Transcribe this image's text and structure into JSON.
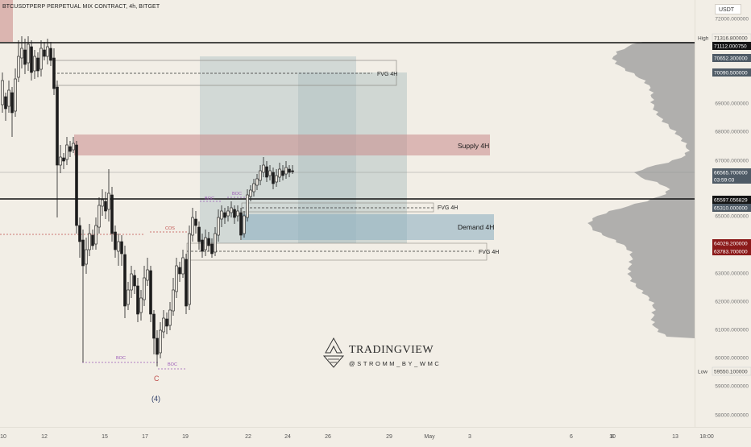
{
  "header": {
    "title": "BTCUSDTPERP PERPETUAL MIX CONTRACT, 4h, BITGET",
    "currency": "USDT"
  },
  "price_axis": {
    "ticks": [
      "72000.000000",
      "69000.000000",
      "68000.000000",
      "67000.000000",
      "65000.000000",
      "63000.000000",
      "62000.000000",
      "61000.000000",
      "60000.000000",
      "59000.000000",
      "58000.000000"
    ],
    "labels": [
      {
        "text": "High",
        "value": "71316.800000",
        "style": "plain"
      },
      {
        "text": "",
        "value": "71112.000750",
        "style": "dark"
      },
      {
        "text": "",
        "value": "70652.300000",
        "style": "slate"
      },
      {
        "text": "",
        "value": "70090.500000",
        "style": "slate"
      },
      {
        "text": "",
        "value": "66565.700000",
        "style": "slate"
      },
      {
        "text": "",
        "value": "03:59:03",
        "style": "slate"
      },
      {
        "text": "",
        "value": "65597.056829",
        "style": "dark"
      },
      {
        "text": "",
        "value": "65310.000000",
        "style": "slate"
      },
      {
        "text": "",
        "value": "64029.200000",
        "style": "red"
      },
      {
        "text": "",
        "value": "63783.700000",
        "style": "red"
      },
      {
        "text": "Low",
        "value": "59550.100000",
        "style": "plain"
      }
    ]
  },
  "time_axis": {
    "ticks": [
      "10",
      "12",
      "15",
      "17",
      "19",
      "22",
      "24",
      "26",
      "29",
      "May",
      "3",
      "6",
      "8",
      "10",
      "13",
      "18:00"
    ]
  },
  "annotations": {
    "fvg_top": "FVG 4H",
    "supply": "Supply 4H",
    "fvg_mid": "FVG 4H",
    "demand": "Demand 4H",
    "fvg_low": "FVG 4H",
    "cos": "COS",
    "boc_left": "BOC",
    "boc_bottom": "BOC",
    "boc_mid1": "BOC",
    "boc_mid2": "BOC",
    "wave_c": "C",
    "wave_4": "(4)"
  },
  "watermark": {
    "brand": "TRADINGVIEW",
    "handle": "@STROMM_BY_WMC"
  },
  "colors": {
    "background": "#f2eee6",
    "bull": "#e8e4dc",
    "bear": "#1c1c1c",
    "supply": "#c98a8a",
    "demand": "#8fb0c2",
    "projection": "#b8c9c8",
    "label_dark": "#141414",
    "label_slate": "#4f5b66",
    "label_red": "#8b1a1a"
  }
}
